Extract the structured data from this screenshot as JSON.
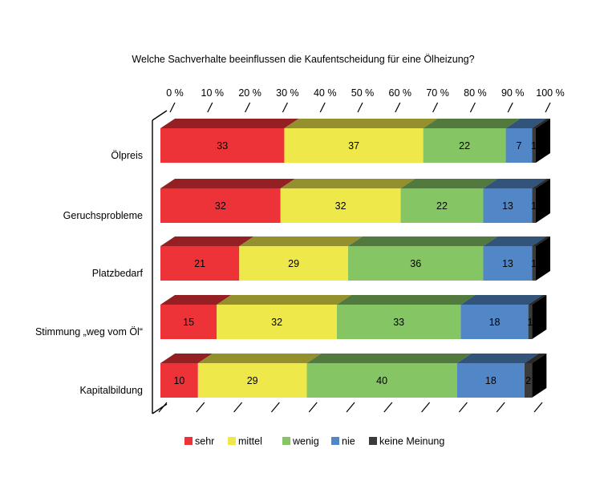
{
  "chart_data": {
    "type": "bar",
    "stacked": true,
    "orientation": "horizontal",
    "three_d": true,
    "title": "Welche Sachverhalte beeinflussen die Kaufentscheidung für eine Ölheizung?",
    "categories": [
      "Ölpreis",
      "Geruchsprobleme",
      "Platzbedarf",
      "Stimmung „weg vom Öl“",
      "Kapitalbildung"
    ],
    "series": [
      {
        "name": "sehr",
        "color": "#ee3338",
        "values": [
          33,
          32,
          21,
          15,
          10
        ]
      },
      {
        "name": "mittel",
        "color": "#eee84a",
        "values": [
          37,
          32,
          29,
          32,
          29
        ]
      },
      {
        "name": "wenig",
        "color": "#86c564",
        "values": [
          22,
          22,
          36,
          33,
          40
        ]
      },
      {
        "name": "nie",
        "color": "#5187c7",
        "values": [
          7,
          13,
          13,
          18,
          18
        ]
      },
      {
        "name": "keine Meinung",
        "color": "#3b3b3b",
        "values": [
          1,
          1,
          1,
          1,
          2
        ]
      }
    ],
    "xlim": [
      0,
      100
    ],
    "xticks": [
      "0 %",
      "10 %",
      "20 %",
      "30 %",
      "40 %",
      "50 %",
      "60 %",
      "70 %",
      "80 %",
      "90 %",
      "100 %"
    ],
    "legend_position": "bottom",
    "grid": false
  }
}
